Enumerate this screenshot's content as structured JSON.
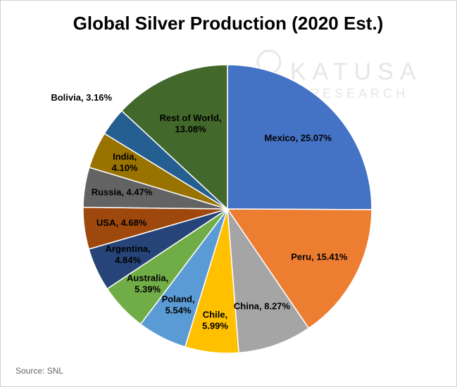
{
  "chart_data": {
    "type": "pie",
    "title": "Global Silver Production (2020 Est.)",
    "values": [
      25.07,
      15.41,
      8.27,
      5.99,
      5.54,
      5.39,
      4.84,
      4.68,
      4.47,
      4.1,
      3.16,
      13.08
    ],
    "value_labels": [
      [
        "Mexico, 25.07%"
      ],
      [
        "Peru, 15.41%"
      ],
      [
        "China, 8.27%"
      ],
      [
        "Chile,",
        "5.99%"
      ],
      [
        "Poland,",
        "5.54%"
      ],
      [
        "Australia,",
        "5.39%"
      ],
      [
        "Argentina,",
        "4.84%"
      ],
      [
        "USA, 4.68%"
      ],
      [
        "Russia, 4.47%"
      ],
      [
        "India,",
        "4.10%"
      ],
      [
        "Bolivia, 3.16%"
      ],
      [
        "Rest of World,",
        "13.08%"
      ]
    ],
    "colors": [
      "#4472c4",
      "#ed7d31",
      "#a5a5a5",
      "#ffc000",
      "#5b9bd5",
      "#70ad47",
      "#264478",
      "#9e480e",
      "#636363",
      "#997300",
      "#255e91",
      "#43682b"
    ],
    "source": "Source: SNL",
    "watermark": [
      "KATUSA",
      "RESEARCH"
    ]
  }
}
